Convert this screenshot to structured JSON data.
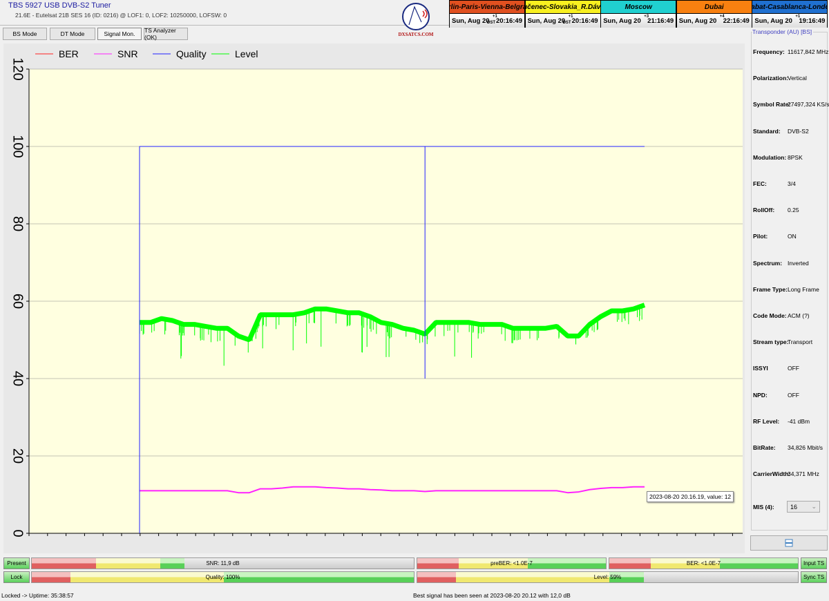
{
  "app": {
    "title": "TBS 5927 USB DVB-S2 Tuner",
    "subtitle": "21.6E - Eutelsat 21B  SES 16 (ID: 0216) @ LOF1: 0, LOF2: 10250000, LOFSW: 0",
    "logo_text": "DXSATCS.COM"
  },
  "tabs": [
    {
      "label": "BS Mode"
    },
    {
      "label": "DT Mode"
    },
    {
      "label": "Signal Mon.",
      "active": true
    },
    {
      "label": "TS Analyzer (OK)"
    }
  ],
  "clocks": [
    {
      "name": "Berlin-Paris-Vienna-Belgrade",
      "date": "Sun, Aug 20",
      "offset": "+1",
      "dst": "DST",
      "time": "20:16:49",
      "color": "#e05020",
      "text_color": "#000"
    },
    {
      "name": "Lučenec-Slovakia_R.Dávid",
      "date": "Sun, Aug 20",
      "offset": "+1",
      "dst": "DST",
      "time": "20:16:49",
      "color": "#f8f020",
      "text_color": "#000"
    },
    {
      "name": "Moscow",
      "date": "Sun, Aug 20",
      "offset": "+3",
      "dst": "",
      "time": "21:16:49",
      "color": "#20d0d0",
      "text_color": "#000"
    },
    {
      "name": "Dubai",
      "date": "Sun, Aug 20",
      "offset": "+4",
      "dst": "",
      "time": "22:16:49",
      "color": "#f88010",
      "text_color": "#000"
    },
    {
      "name": "Rabat-Casablanca-London",
      "date": "Sun, Aug 20",
      "offset": "+1",
      "dst": "",
      "time": "19:16:49",
      "color": "#2070d0",
      "text_color": "#000"
    }
  ],
  "chart_data": {
    "type": "line",
    "legend": [
      {
        "name": "BER",
        "color": "#ff2020"
      },
      {
        "name": "SNR",
        "color": "#ff20ff"
      },
      {
        "name": "Quality",
        "color": "#2020ff"
      },
      {
        "name": "Level",
        "color": "#00ff00"
      }
    ],
    "legend_placement": "top-left",
    "ylim": [
      0,
      120
    ],
    "yticks": [
      "0",
      "20",
      "40",
      "60",
      "80",
      "100",
      "120"
    ],
    "background": "#ffffe0",
    "series": [
      {
        "name": "Level",
        "values": [
          54.5,
          54.5,
          55.5,
          55,
          54,
          54,
          53.5,
          53,
          53,
          51,
          50,
          56.5,
          56.5,
          56.5,
          56.5,
          57,
          58,
          58,
          57.5,
          57,
          57,
          56,
          54.5,
          54,
          53,
          52.5,
          51.5,
          54.5,
          54.5,
          54.5,
          54.5,
          54,
          54,
          54,
          53,
          53,
          53,
          53,
          53.5,
          51,
          51,
          54,
          56,
          57.5,
          57.5,
          58,
          59
        ]
      },
      {
        "name": "SNR",
        "values": [
          11,
          11,
          11,
          11,
          11,
          11,
          11,
          11,
          11,
          10.5,
          10.5,
          11.5,
          11.5,
          11.7,
          12,
          12,
          12,
          11.8,
          11.7,
          11.5,
          11.5,
          11.3,
          11.2,
          11,
          11,
          11,
          10.8,
          11,
          11,
          11,
          11,
          11,
          11,
          11,
          11,
          11,
          11,
          11,
          11,
          10.5,
          10.7,
          11.3,
          11.6,
          11.8,
          11.8,
          12,
          12
        ]
      },
      {
        "name": "Quality",
        "values": [
          100,
          100,
          100,
          100,
          100,
          100,
          100,
          100,
          100,
          100,
          100,
          100,
          100,
          100,
          100,
          100,
          100,
          100,
          100,
          100,
          100,
          100,
          100,
          100,
          100,
          100,
          40,
          100,
          100,
          100,
          100,
          100,
          100,
          100,
          100,
          100,
          100,
          100,
          100,
          100,
          100,
          100,
          100,
          100,
          100,
          100,
          100
        ]
      },
      {
        "name": "BER",
        "values": []
      }
    ],
    "tooltip": "2023-08-20 20.16.19, value: 12"
  },
  "transponder": {
    "title": "Transponder (AU) [BS]",
    "rows": [
      {
        "k": "Frequency:",
        "v": "11617,842 MHz"
      },
      {
        "k": "Polarization:",
        "v": "Vertical"
      },
      {
        "k": "Symbol Rate:",
        "v": "27497,324 KS/s"
      },
      {
        "k": "Standard:",
        "v": "DVB-S2"
      },
      {
        "k": "Modulation:",
        "v": "8PSK"
      },
      {
        "k": "FEC:",
        "v": "3/4"
      },
      {
        "k": "RollOff:",
        "v": "0.25"
      },
      {
        "k": "Pilot:",
        "v": "ON"
      },
      {
        "k": "Spectrum:",
        "v": "Inverted"
      },
      {
        "k": "Frame Type:",
        "v": "Long Frame"
      },
      {
        "k": "Code Mode:",
        "v": "ACM (?)"
      },
      {
        "k": "Stream type:",
        "v": "Transport"
      },
      {
        "k": "ISSYI",
        "v": "OFF"
      },
      {
        "k": "NPD:",
        "v": "OFF"
      },
      {
        "k": "RF Level:",
        "v": "-41 dBm"
      },
      {
        "k": "BitRate:",
        "v": "34,826 Mbit/s"
      },
      {
        "k": "CarrierWidth:",
        "v": "34,371 MHz"
      }
    ],
    "mis_label": "MIS (4):",
    "mis_value": "16"
  },
  "indicators": {
    "present": "Present",
    "lock": "Lock",
    "input_ts": "Input TS",
    "sync_ts": "Sync TS",
    "snr": {
      "label": "SNR: 11,9 dB",
      "percent": 40
    },
    "preber": {
      "label": "preBER: <1.0E-7",
      "percent": 100
    },
    "ber": {
      "label": "BER: <1.0E-7",
      "percent": 100
    },
    "quality": {
      "label": "Quality: 100%",
      "percent": 100
    },
    "level": {
      "label": "Level: 59%",
      "percent": 59
    }
  },
  "status": {
    "left": "Locked -> Uptime: 35:38:57",
    "center": "Best signal has been seen at 2023-08-20 20.12 with 12,0 dB"
  }
}
